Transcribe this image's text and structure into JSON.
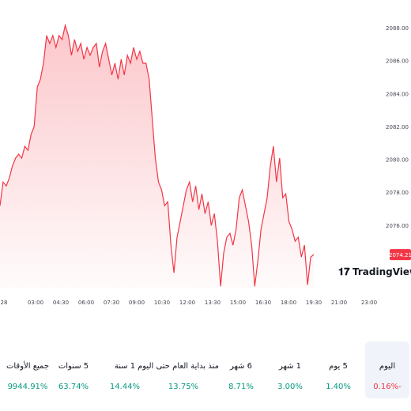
{
  "chart_data": {
    "type": "line",
    "xticks_labels": [
      "28",
      "03:00",
      "04:30",
      "06:00",
      "07:30",
      "09:00",
      "10:30",
      "12:00",
      "13:30",
      "15:00",
      "16:30",
      "18:00",
      "19:30",
      "21:00",
      "23:00"
    ],
    "ylim": [
      2072.15,
      2089.68
    ],
    "yticks": [
      {
        "value": 2076,
        "label": "2076.00"
      },
      {
        "value": 2078,
        "label": "2078.00"
      },
      {
        "value": 2080,
        "label": "2080.00"
      },
      {
        "value": 2082,
        "label": "2082.00"
      },
      {
        "value": 2084,
        "label": "2084.00"
      },
      {
        "value": 2086,
        "label": "2086.00"
      },
      {
        "value": 2088,
        "label": "2088.00"
      }
    ],
    "series": [
      {
        "color": "#f23645",
        "values": [
          2077.18,
          2078.62,
          2078.38,
          2078.87,
          2079.59,
          2080.07,
          2080.31,
          2080.07,
          2080.79,
          2080.55,
          2081.51,
          2081.99,
          2084.39,
          2084.87,
          2085.84,
          2087.52,
          2087.04,
          2087.52,
          2086.8,
          2087.52,
          2087.28,
          2088.14,
          2087.52,
          2086.32,
          2087.28,
          2086.56,
          2087.04,
          2086.08,
          2086.8,
          2086.32,
          2086.8,
          2087.04,
          2085.6,
          2086.56,
          2087.04,
          2086.08,
          2085.12,
          2085.84,
          2084.87,
          2086.08,
          2085.12,
          2086.32,
          2085.84,
          2086.8,
          2086.08,
          2086.56,
          2085.84,
          2085.84,
          2084.87,
          2082.47,
          2080.07,
          2078.62,
          2078.14,
          2077.18,
          2077.42,
          2074.78,
          2073.1,
          2075.26,
          2076.22,
          2077.18,
          2078.14,
          2078.62,
          2077.42,
          2078.38,
          2076.94,
          2077.9,
          2076.7,
          2077.42,
          2075.98,
          2076.7,
          2075.02,
          2072.28,
          2074.3,
          2075.26,
          2075.5,
          2074.78,
          2075.74,
          2077.66,
          2078.14,
          2077.18,
          2076.22,
          2074.78,
          2072.28,
          2073.82,
          2075.74,
          2076.7,
          2077.66,
          2079.59,
          2080.79,
          2078.62,
          2080.07,
          2077.66,
          2077.9,
          2076.22,
          2075.74,
          2075.02,
          2075.26,
          2074.06,
          2074.78,
          2072.37,
          2074.06,
          2074.21
        ]
      }
    ]
  },
  "logo": "TradingView",
  "periods": [
    {
      "label": "اليوم",
      "change": "-0.16%",
      "selected": true,
      "color": "#f23645"
    },
    {
      "label": "5 يوم",
      "change": "1.40%",
      "color": "#089981"
    },
    {
      "label": "1 شهر",
      "change": "3.00%",
      "color": "#089981"
    },
    {
      "label": "6 شهر",
      "change": "8.71%",
      "color": "#089981"
    },
    {
      "label": "منذ بداية العام حتى اليوم",
      "change": "13.75%",
      "color": "#089981"
    },
    {
      "label": "1 سنة",
      "change": "14.44%",
      "color": "#089981"
    },
    {
      "label": "5 سنوات",
      "change": "63.74%",
      "color": "#089981"
    },
    {
      "label": "جميع الأوقات",
      "change": "9944.91%",
      "color": "#089981"
    }
  ]
}
